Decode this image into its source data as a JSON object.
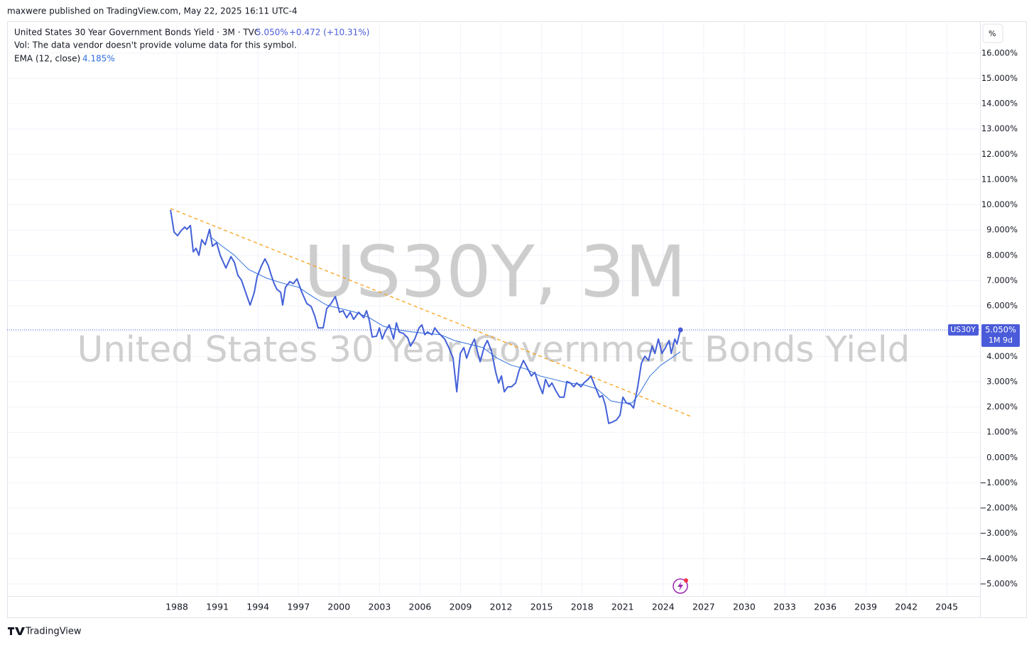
{
  "header": {
    "published": "maxwere published on TradingView.com, May 22, 2025 16:11 UTC-4",
    "symbol_title": "United States 30 Year Government Bonds Yield · 3M · TVC",
    "change": "+0.472 (+10.31%)",
    "vol": "Vol: The data vendor doesn't provide volume data for this symbol.",
    "ema_value": "4.185%",
    "unit_button": "%",
    "brand": "TradingView"
  },
  "chart_data": {
    "type": "line",
    "watermark": [
      "US30Y, 3M",
      "United States 30 Year Government Bonds Yield"
    ],
    "xlim": [
      1975.43,
      2047.46
    ],
    "xticks": [
      1988,
      1991,
      1994,
      1997,
      2000,
      2003,
      2006,
      2009,
      2012,
      2015,
      2018,
      2021,
      2024,
      2027,
      2030,
      2033,
      2036,
      2039,
      2042,
      2045
    ],
    "ylim": [
      -5.62,
      17.26
    ],
    "yticks": [
      {
        "value": 16,
        "label": "16.000%"
      },
      {
        "value": 15,
        "label": "15.000%"
      },
      {
        "value": 14,
        "label": "14.000%"
      },
      {
        "value": 13,
        "label": "13.000%"
      },
      {
        "value": 12,
        "label": "12.000%"
      },
      {
        "value": 11,
        "label": "11.000%"
      },
      {
        "value": 10,
        "label": "10.000%"
      },
      {
        "value": 9,
        "label": "9.000%"
      },
      {
        "value": 8,
        "label": "8.000%"
      },
      {
        "value": 7,
        "label": "7.000%"
      },
      {
        "value": 6,
        "label": "6.000%"
      },
      {
        "value": 5,
        "label": "5.000%"
      },
      {
        "value": 4,
        "label": "4.000%"
      },
      {
        "value": 3,
        "label": "3.000%"
      },
      {
        "value": 2,
        "label": "2.000%"
      },
      {
        "value": 1,
        "label": "1.000%"
      },
      {
        "value": 0,
        "label": "0.000%"
      },
      {
        "value": -1,
        "label": "−1.000%"
      },
      {
        "value": -2,
        "label": "−2.000%"
      },
      {
        "value": -3,
        "label": "−3.000%"
      },
      {
        "value": -4,
        "label": "−4.000%"
      },
      {
        "value": -5,
        "label": "−5.000%"
      }
    ],
    "grid": true,
    "series": [
      {
        "name": "US30Y",
        "color": "#4360d8",
        "width": 2,
        "x": [
          1987.53,
          1987.79,
          1988.05,
          1988.32,
          1988.58,
          1988.74,
          1989.0,
          1989.21,
          1989.42,
          1989.63,
          1989.84,
          1990.1,
          1990.42,
          1990.63,
          1990.94,
          1991.21,
          1991.63,
          1992.0,
          1992.26,
          1992.52,
          1992.78,
          1993.05,
          1993.42,
          1993.73,
          1993.94,
          1994.26,
          1994.52,
          1994.78,
          1994.99,
          1995.2,
          1995.41,
          1995.68,
          1995.83,
          1996.04,
          1996.36,
          1996.62,
          1996.89,
          1997.25,
          1997.62,
          1997.94,
          1998.2,
          1998.46,
          1998.83,
          1999.09,
          1999.41,
          1999.73,
          2000.04,
          2000.3,
          2000.57,
          2000.83,
          2001.09,
          2001.46,
          2001.83,
          2002.04,
          2002.25,
          2002.46,
          2002.78,
          2002.99,
          2003.2,
          2003.41,
          2003.72,
          2004.04,
          2004.25,
          2004.46,
          2004.77,
          2005.09,
          2005.3,
          2005.61,
          2005.93,
          2006.14,
          2006.35,
          2006.56,
          2006.88,
          2007.09,
          2007.3,
          2007.51,
          2007.82,
          2008.14,
          2008.45,
          2008.72,
          2008.98,
          2009.24,
          2009.45,
          2009.72,
          2010.03,
          2010.24,
          2010.45,
          2010.77,
          2010.98,
          2011.29,
          2011.61,
          2011.82,
          2012.03,
          2012.24,
          2012.5,
          2012.77,
          2013.08,
          2013.34,
          2013.66,
          2013.92,
          2014.24,
          2014.5,
          2014.76,
          2015.08,
          2015.29,
          2015.55,
          2015.76,
          2016.03,
          2016.34,
          2016.66,
          2016.87,
          2017.13,
          2017.39,
          2017.6,
          2017.92,
          2018.13,
          2018.44,
          2018.65,
          2018.97,
          2019.29,
          2019.5,
          2019.71,
          2019.97,
          2020.23,
          2020.55,
          2020.81,
          2021.02,
          2021.28,
          2021.6,
          2021.81,
          2022.12,
          2022.39,
          2022.65,
          2022.91,
          2023.18,
          2023.39,
          2023.65,
          2023.91,
          2024.17,
          2024.44,
          2024.6,
          2024.86,
          2025.02,
          2025.28
        ],
        "values": [
          9.8,
          8.92,
          8.78,
          8.98,
          9.12,
          9.03,
          9.18,
          8.14,
          8.28,
          8.0,
          8.62,
          8.42,
          9.03,
          8.36,
          8.5,
          8.0,
          7.5,
          7.95,
          7.72,
          7.21,
          7.02,
          6.6,
          6.03,
          6.54,
          7.16,
          7.58,
          7.86,
          7.58,
          7.21,
          6.88,
          6.65,
          6.54,
          6.03,
          6.74,
          6.96,
          6.88,
          7.07,
          6.54,
          6.09,
          5.98,
          5.61,
          5.13,
          5.13,
          5.89,
          6.09,
          6.37,
          5.75,
          5.81,
          5.53,
          5.75,
          5.47,
          5.75,
          5.53,
          5.81,
          5.42,
          4.77,
          4.8,
          5.13,
          4.69,
          4.97,
          5.25,
          4.69,
          5.33,
          4.97,
          4.91,
          4.74,
          4.41,
          4.69,
          5.13,
          5.25,
          4.86,
          4.97,
          4.86,
          5.13,
          4.97,
          4.86,
          4.69,
          4.35,
          3.93,
          2.6,
          4.12,
          4.35,
          3.93,
          4.35,
          4.69,
          4.21,
          3.79,
          4.41,
          4.63,
          4.21,
          3.37,
          2.95,
          3.23,
          2.6,
          2.8,
          2.8,
          2.95,
          3.45,
          3.84,
          3.57,
          3.23,
          3.37,
          2.95,
          2.53,
          3.09,
          2.8,
          2.95,
          2.67,
          2.39,
          2.39,
          3.01,
          2.95,
          2.8,
          2.95,
          2.8,
          2.95,
          3.09,
          3.23,
          2.8,
          2.39,
          2.45,
          2.1,
          1.35,
          1.4,
          1.49,
          1.68,
          2.39,
          2.16,
          2.1,
          1.96,
          2.8,
          3.73,
          4.01,
          3.84,
          4.41,
          4.12,
          4.69,
          4.12,
          4.35,
          4.63,
          4.12,
          4.69,
          4.49,
          5.05
        ]
      },
      {
        "name": "EMA (12, close)",
        "color": "#2f6fdd",
        "width": 1,
        "x": [
          1990.42,
          1991.21,
          1992.26,
          1993.31,
          1994.63,
          1995.94,
          1996.99,
          1998.04,
          1999.09,
          2000.15,
          2001.2,
          2002.25,
          2003.3,
          2004.35,
          2005.4,
          2006.46,
          2007.51,
          2008.56,
          2009.61,
          2010.66,
          2011.71,
          2012.77,
          2013.82,
          2014.87,
          2015.92,
          2016.97,
          2018.02,
          2019.08,
          2020.13,
          2020.92,
          2021.7,
          2022.23,
          2023.02,
          2023.81,
          2024.6,
          2025.28
        ],
        "values": [
          8.76,
          8.42,
          8.0,
          7.44,
          7.1,
          6.88,
          6.74,
          6.37,
          6.03,
          5.89,
          5.75,
          5.53,
          5.19,
          5.05,
          4.97,
          4.91,
          4.86,
          4.63,
          4.49,
          4.35,
          3.93,
          3.65,
          3.51,
          3.23,
          3.09,
          2.95,
          2.89,
          2.72,
          2.24,
          2.16,
          2.16,
          2.53,
          3.23,
          3.65,
          3.93,
          4.185
        ]
      }
    ],
    "trendline": {
      "x": [
        1987.53,
        2026.17
      ],
      "values": [
        9.85,
        1.6
      ],
      "color": "#f7a21b"
    },
    "last": {
      "value": 5.05,
      "label": "5.050%",
      "countdown": "1M 9d",
      "color": "#4a5bd9"
    }
  }
}
